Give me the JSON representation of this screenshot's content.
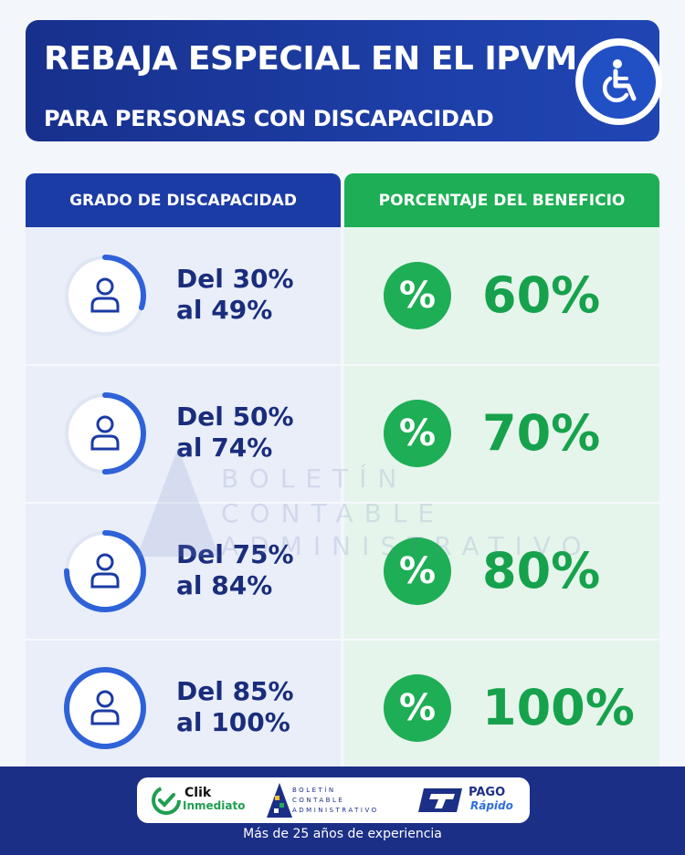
{
  "header": {
    "title": "REBAJA ESPECIAL EN EL IPVM",
    "subtitle": "PARA PERSONAS CON DISCAPACIDAD",
    "icon": "wheelchair-icon"
  },
  "table": {
    "left_header": "GRADO DE DISCAPACIDAD",
    "right_header": "PORCENTAJE DEL BENEFICIO",
    "rows": [
      {
        "grade_line1": "Del 30%",
        "grade_line2": "al 49%",
        "badge": "%",
        "benefit": "60%",
        "ring_fill": 0.3
      },
      {
        "grade_line1": "Del 50%",
        "grade_line2": "al 74%",
        "badge": "%",
        "benefit": "70%",
        "ring_fill": 0.5
      },
      {
        "grade_line1": "Del 75%",
        "grade_line2": "al 84%",
        "badge": "%",
        "benefit": "80%",
        "ring_fill": 0.75
      },
      {
        "grade_line1": "Del 85%",
        "grade_line2": "al 100%",
        "badge": "%",
        "benefit": "100%",
        "ring_fill": 1.0
      }
    ]
  },
  "watermark": {
    "lines": [
      "BOLETÍN",
      "CONTABLE",
      "ADMINISTRATIVO"
    ]
  },
  "footer": {
    "logo_clik_line1": "Clik",
    "logo_clik_line2": "Inmediato",
    "logo_bca_lines": [
      "BOLETÍN",
      "CONTABLE",
      "ADMINISTRATIVO"
    ],
    "logo_pago_line1": "PAGO",
    "logo_pago_line2": "Rápido",
    "tagline": "Más de 25 años de experiencia"
  },
  "colors": {
    "blue_dark": "#1b3ba5",
    "green": "#1eae55",
    "ring_blue": "#2f62d8"
  }
}
